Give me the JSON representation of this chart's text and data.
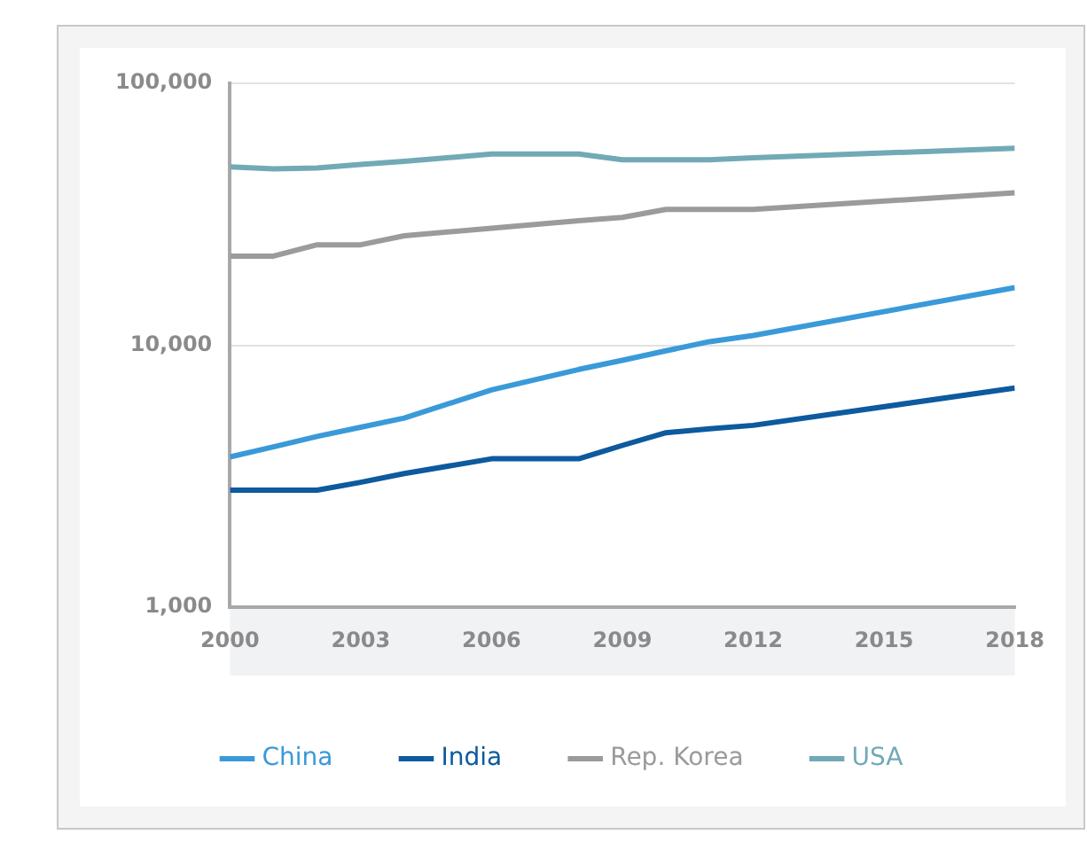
{
  "chart_data": {
    "type": "line",
    "log": "y",
    "x": [
      2000,
      2001,
      2002,
      2003,
      2004,
      2006,
      2008,
      2009,
      2010,
      2011,
      2012,
      2018
    ],
    "xlim": [
      2000,
      2018
    ],
    "xticks": [
      2000,
      2003,
      2006,
      2009,
      2012,
      2015,
      2018
    ],
    "ylim": [
      1000,
      100000
    ],
    "yticks": [
      {
        "value": 1000,
        "label": "1,000"
      },
      {
        "value": 10000,
        "label": "10,000"
      },
      {
        "value": 100000,
        "label": "100,000"
      }
    ],
    "grid": "y",
    "legend": "bottom",
    "marker": "none",
    "line_style": "solid",
    "series": [
      {
        "name": "China",
        "color": "#3a9ad9",
        "values": [
          3750,
          4100,
          4490,
          4870,
          5280,
          6760,
          8090,
          8770,
          9530,
          10330,
          10900,
          16600
        ]
      },
      {
        "name": "India",
        "color": "#0d5a9e",
        "values": [
          2800,
          2800,
          2800,
          3000,
          3240,
          3690,
          3690,
          4150,
          4640,
          4800,
          4950,
          6870
        ]
      },
      {
        "name": "Rep. Korea",
        "color": "#9b9b9d",
        "values": [
          21900,
          21900,
          24200,
          24200,
          26200,
          28000,
          29900,
          30800,
          33000,
          33000,
          33000,
          38200
        ]
      },
      {
        "name": "USA",
        "color": "#72a9b7",
        "values": [
          48000,
          47200,
          47500,
          49000,
          50400,
          53700,
          53700,
          51100,
          51100,
          51100,
          52000,
          56500
        ]
      }
    ]
  }
}
